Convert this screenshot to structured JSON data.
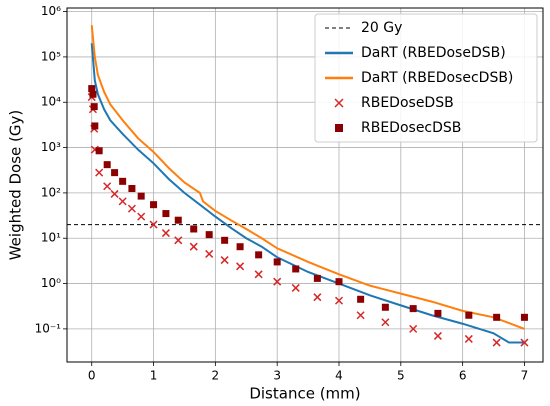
{
  "chart_data": {
    "type": "line",
    "xlabel": "Distance (mm)",
    "ylabel": "Weighted Dose (Gy)",
    "xlim": [
      -0.4,
      7.3
    ],
    "xticks": [
      0,
      1,
      2,
      3,
      4,
      5,
      6,
      7
    ],
    "ylim": [
      0.0186,
      1200000
    ],
    "log_y": true,
    "yticks": [
      {
        "value": 0.1,
        "label": "10⁻¹"
      },
      {
        "value": 1,
        "label": "10⁰"
      },
      {
        "value": 10,
        "label": "10¹"
      },
      {
        "value": 100,
        "label": "10²"
      },
      {
        "value": 1000,
        "label": "10³"
      },
      {
        "value": 10000,
        "label": "10⁴"
      },
      {
        "value": 100000,
        "label": "10⁵"
      },
      {
        "value": 1000000,
        "label": "10⁶"
      }
    ],
    "grid": true,
    "legend": "upper right",
    "hline": {
      "name": "20 Gy",
      "value": 20,
      "color": "#000000"
    },
    "series": [
      {
        "name": "DaRT (RBEDoseDSB)",
        "color": "#1f77b4",
        "marker": "none",
        "x": [
          0.0,
          0.05,
          0.1,
          0.2,
          0.3,
          0.5,
          0.75,
          1.0,
          1.25,
          1.5,
          1.75,
          2.0,
          2.25,
          2.5,
          2.75,
          3.0,
          3.5,
          4.0,
          4.5,
          5.0,
          5.5,
          6.0,
          6.5,
          6.75,
          7.0
        ],
        "values": [
          200000,
          30000,
          15000,
          7000,
          4000,
          2000,
          900,
          450,
          200,
          100,
          55,
          30,
          17,
          10,
          6.5,
          3.8,
          1.8,
          1.0,
          0.55,
          0.33,
          0.2,
          0.13,
          0.08,
          0.05,
          0.05
        ]
      },
      {
        "name": "DaRT (RBEDosecDSB)",
        "color": "#ff7f0e",
        "marker": "none",
        "x": [
          0.0,
          0.05,
          0.1,
          0.2,
          0.3,
          0.5,
          0.75,
          1.0,
          1.25,
          1.5,
          1.75,
          1.8,
          2.0,
          2.25,
          2.5,
          2.75,
          3.0,
          3.5,
          4.0,
          4.5,
          5.0,
          5.5,
          6.0,
          6.5,
          7.0
        ],
        "values": [
          500000,
          100000,
          40000,
          17000,
          9000,
          4000,
          1600,
          800,
          350,
          170,
          100,
          65,
          40,
          25,
          16,
          10,
          6,
          3,
          1.6,
          0.9,
          0.6,
          0.4,
          0.25,
          0.18,
          0.1
        ]
      },
      {
        "name": "RBEDoseDSB",
        "color": "#d62728",
        "marker": "x",
        "x": [
          0.0,
          0.02,
          0.04,
          0.05,
          0.12,
          0.25,
          0.37,
          0.5,
          0.65,
          0.8,
          1.0,
          1.2,
          1.4,
          1.65,
          1.9,
          2.15,
          2.4,
          2.7,
          3.0,
          3.3,
          3.65,
          4.0,
          4.35,
          4.75,
          5.2,
          5.6,
          6.1,
          6.55,
          7.0
        ],
        "values": [
          13000,
          7000,
          2600,
          900,
          280,
          140,
          95,
          65,
          45,
          30,
          20,
          13,
          9,
          6.5,
          4.5,
          3.3,
          2.4,
          1.6,
          1.1,
          0.8,
          0.5,
          0.42,
          0.2,
          0.14,
          0.1,
          0.07,
          0.06,
          0.05,
          0.05
        ]
      },
      {
        "name": "RBEDosecDSB",
        "color": "#8b0000",
        "marker": "s",
        "x": [
          0.0,
          0.02,
          0.04,
          0.05,
          0.12,
          0.25,
          0.37,
          0.5,
          0.65,
          0.8,
          1.0,
          1.2,
          1.4,
          1.65,
          1.9,
          2.15,
          2.4,
          2.7,
          3.0,
          3.3,
          3.65,
          4.0,
          4.35,
          4.75,
          5.2,
          5.6,
          6.1,
          6.55,
          7.0
        ],
        "values": [
          20000,
          15000,
          8000,
          3000,
          850,
          420,
          280,
          180,
          125,
          85,
          55,
          35,
          25,
          16,
          12,
          9,
          6.5,
          4.3,
          3,
          2.1,
          1.3,
          1.1,
          0.45,
          0.3,
          0.28,
          0.22,
          0.2,
          0.18,
          0.18
        ]
      }
    ]
  }
}
